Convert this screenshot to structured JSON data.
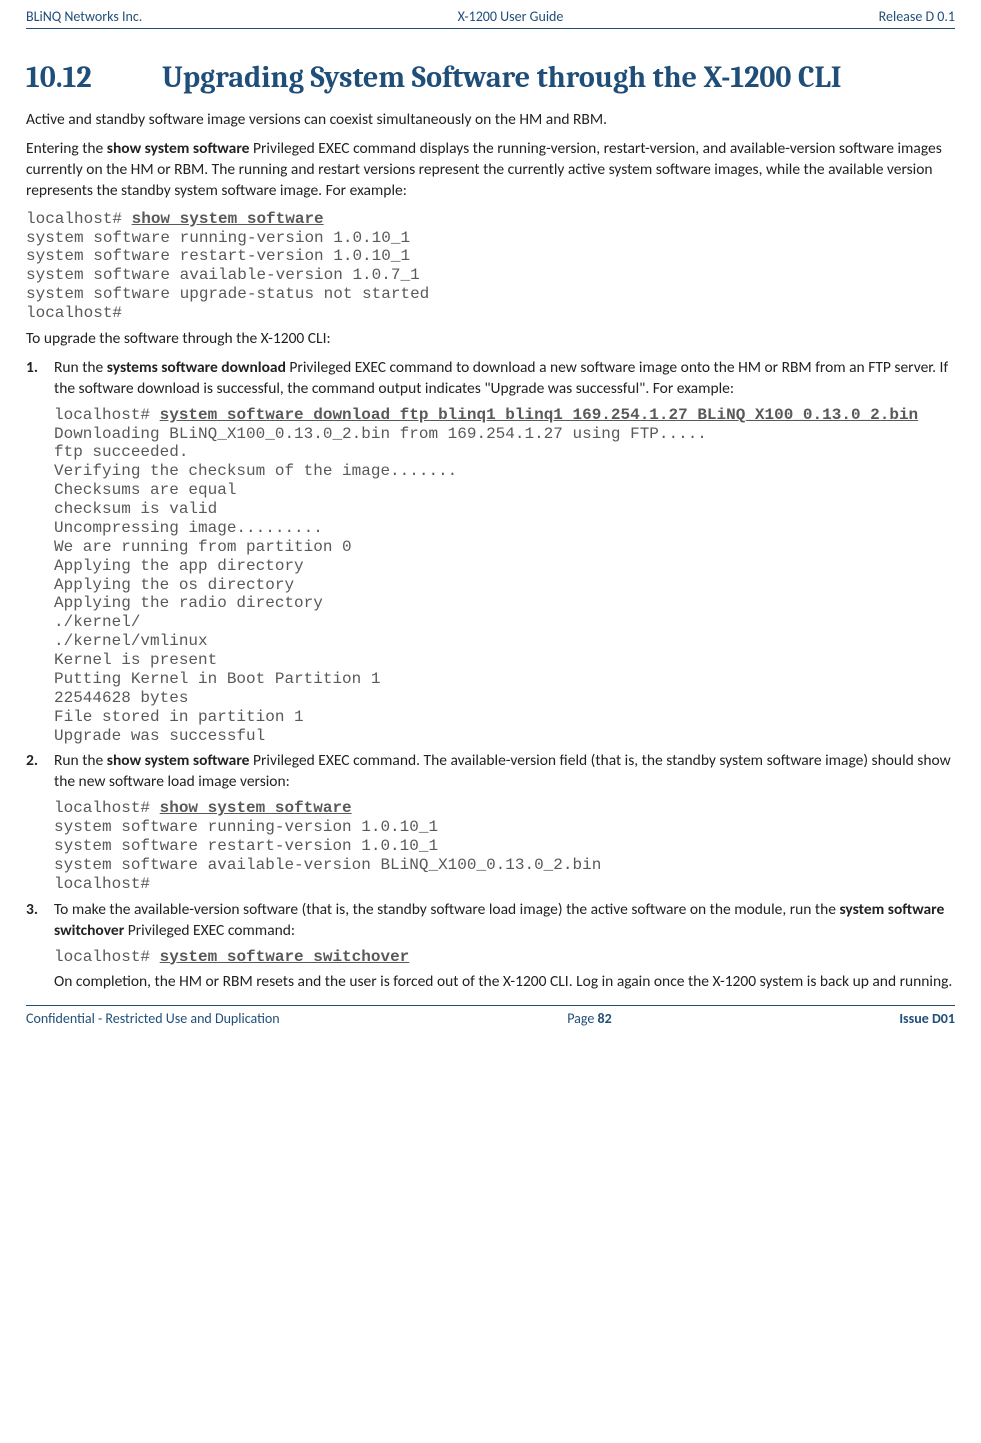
{
  "header": {
    "left": "BLiNQ Networks Inc.",
    "center": "X-1200 User Guide",
    "right": "Release D 0.1"
  },
  "footer": {
    "left": "Confidential - Restricted Use and Duplication",
    "center_prefix": "Page ",
    "center_num": "82",
    "right": "Issue D01"
  },
  "heading": {
    "number": "10.12",
    "title": "Upgrading System Software through the X-1200 CLI"
  },
  "intro": {
    "p1": "Active and standby software image versions can coexist simultaneously on the HM and RBM.",
    "p2_a": "Entering the ",
    "p2_bold": "show system software",
    "p2_b": " Privileged EXEC command displays the running-version, restart-version, and available-version software images currently on the HM or RBM. The running and restart versions represent the currently active system software images, while the available version represents the standby system software image.  For example:"
  },
  "code_intro": {
    "prompt": "localhost# ",
    "cmd": "show system software",
    "lines": "system software running-version 1.0.10_1\nsystem software restart-version 1.0.10_1\nsystem software available-version 1.0.7_1\nsystem software upgrade-status not started\nlocalhost#"
  },
  "lead": "To upgrade the software through the X-1200 CLI:",
  "step1": {
    "p_a": "Run the ",
    "p_bold": "systems software download",
    "p_b": " Privileged EXEC command to download a new software image onto the HM or RBM from an FTP server. If the software download is successful, the command output indicates \"Upgrade was successful\". For example:",
    "code_prompt": "localhost# ",
    "code_cmd": "system software download ftp blinq1 blinq1 169.254.1.27 BLiNQ_X100_0.13.0_2.bin",
    "code_lines": "Downloading BLiNQ_X100_0.13.0_2.bin from 169.254.1.27 using FTP.....\nftp succeeded.\nVerifying the checksum of the image.......\nChecksums are equal\nchecksum is valid\nUncompressing image.........\nWe are running from partition 0\nApplying the app directory\nApplying the os directory\nApplying the radio directory\n./kernel/\n./kernel/vmlinux\nKernel is present\nPutting Kernel in Boot Partition 1\n22544628 bytes\nFile stored in partition 1\nUpgrade was successful"
  },
  "step2": {
    "p_a": "Run the ",
    "p_bold": "show system software",
    "p_b": " Privileged EXEC command. The available-version field (that is, the standby system software image) should show the new software load image version:",
    "code_prompt": "localhost# ",
    "code_cmd": "show system software",
    "code_lines": "system software running-version 1.0.10_1\nsystem software restart-version 1.0.10_1\nsystem software available-version BLiNQ_X100_0.13.0_2.bin\nlocalhost#"
  },
  "step3": {
    "p_a": "To make the available-version software (that is, the standby software load image) the active software on the module, run the ",
    "p_bold": "system software switchover",
    "p_b": " Privileged EXEC command:",
    "code_prompt": "localhost# ",
    "code_cmd": "system software switchover",
    "p2": "On completion, the HM or RBM resets and the user is forced out of the X-1200 CLI.  Log in again once the X-1200 system is back up and running."
  }
}
